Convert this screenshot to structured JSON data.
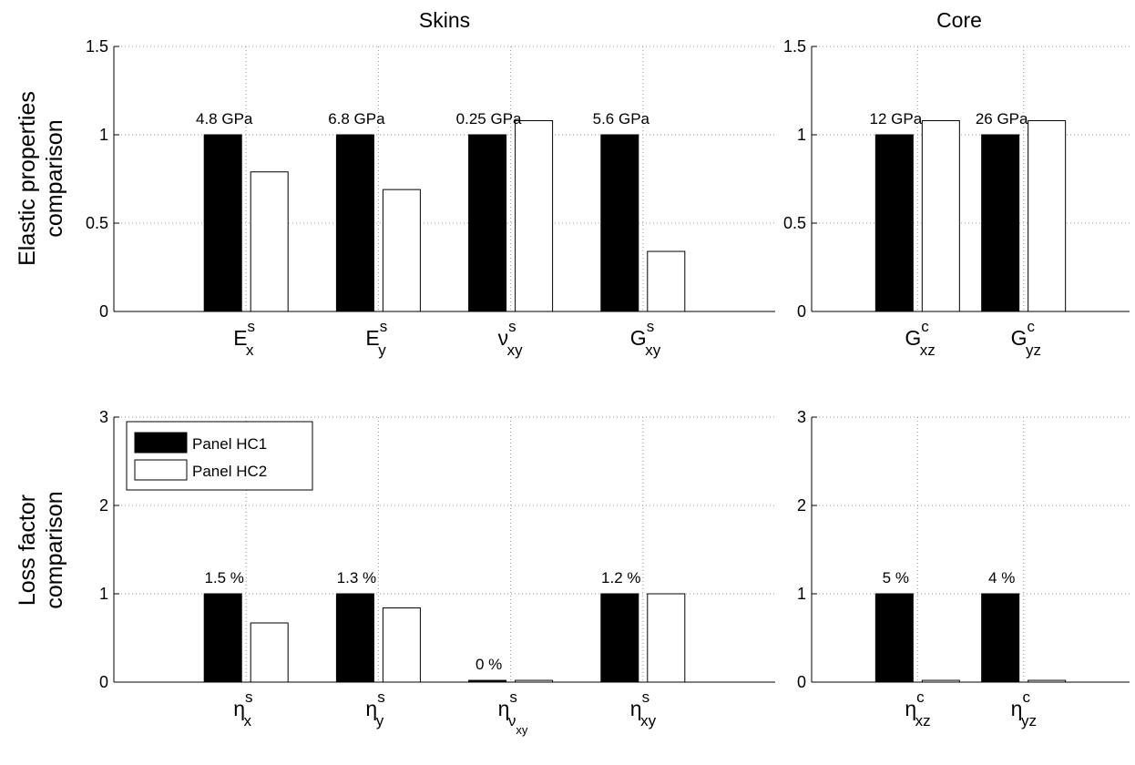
{
  "figure": {
    "col_titles": [
      "Skins",
      "Core"
    ],
    "row_labels": [
      [
        "Elastic properties",
        "comparison"
      ],
      [
        "Loss factor",
        "comparison"
      ]
    ]
  },
  "legend": {
    "placement": "upper-left of bottom-left panel",
    "entries": [
      {
        "name": "Panel HC1",
        "color": "#000000"
      },
      {
        "name": "Panel HC2",
        "color": "#ffffff"
      }
    ]
  },
  "colors": {
    "hc1": "#000000",
    "hc2": "#ffffff",
    "grid": "#9a9a9a",
    "axis": "#000000"
  },
  "chart_data": [
    {
      "type": "bar",
      "panel": "top-left",
      "ylim": [
        0,
        1.5
      ],
      "yticks": [
        "0",
        "0.5",
        "1",
        "1.5"
      ],
      "ytick_values": [
        0,
        0.5,
        1,
        1.5
      ],
      "grid": true,
      "categories": [
        {
          "main": "E",
          "sup": "s",
          "sub": "x",
          "subsub": ""
        },
        {
          "main": "E",
          "sup": "s",
          "sub": "y",
          "subsub": ""
        },
        {
          "main": "ν",
          "sup": "s",
          "sub": "xy",
          "subsub": ""
        },
        {
          "main": "G",
          "sup": "s",
          "sub": "xy",
          "subsub": ""
        }
      ],
      "series": [
        {
          "name": "Panel HC1",
          "values": [
            1,
            1,
            1,
            1
          ]
        },
        {
          "name": "Panel HC2",
          "values": [
            0.79,
            0.69,
            1.08,
            0.34
          ]
        }
      ],
      "data_labels": [
        "4.8 GPa",
        "6.8 GPa",
        "0.25 GPa",
        "5.6 GPa"
      ]
    },
    {
      "type": "bar",
      "panel": "top-right",
      "ylim": [
        0,
        1.5
      ],
      "yticks": [
        "0",
        "0.5",
        "1",
        "1.5"
      ],
      "ytick_values": [
        0,
        0.5,
        1,
        1.5
      ],
      "grid": true,
      "categories": [
        {
          "main": "G",
          "sup": "c",
          "sub": "xz",
          "subsub": ""
        },
        {
          "main": "G",
          "sup": "c",
          "sub": "yz",
          "subsub": ""
        }
      ],
      "series": [
        {
          "name": "Panel HC1",
          "values": [
            1,
            1
          ]
        },
        {
          "name": "Panel HC2",
          "values": [
            1.08,
            1.08
          ]
        }
      ],
      "data_labels": [
        "12 GPa",
        "26 GPa"
      ]
    },
    {
      "type": "bar",
      "panel": "bottom-left",
      "ylim": [
        0,
        3
      ],
      "yticks": [
        "0",
        "1",
        "2",
        "3"
      ],
      "ytick_values": [
        0,
        1,
        2,
        3
      ],
      "grid": true,
      "categories": [
        {
          "main": "η",
          "sup": "s",
          "sub": "x",
          "subsub": ""
        },
        {
          "main": "η",
          "sup": "s",
          "sub": "y",
          "subsub": ""
        },
        {
          "main": "η",
          "sup": "s",
          "sub": "ν",
          "subsub": "xy"
        },
        {
          "main": "η",
          "sup": "s",
          "sub": "xy",
          "subsub": ""
        }
      ],
      "series": [
        {
          "name": "Panel HC1",
          "values": [
            1,
            1,
            0.02,
            1
          ]
        },
        {
          "name": "Panel HC2",
          "values": [
            0.67,
            0.84,
            0.02,
            1
          ]
        }
      ],
      "data_labels": [
        "1.5 %",
        "1.3 %",
        "0 %",
        "1.2 %"
      ]
    },
    {
      "type": "bar",
      "panel": "bottom-right",
      "ylim": [
        0,
        3
      ],
      "yticks": [
        "0",
        "1",
        "2",
        "3"
      ],
      "ytick_values": [
        0,
        1,
        2,
        3
      ],
      "grid": true,
      "categories": [
        {
          "main": "η",
          "sup": "c",
          "sub": "xz",
          "subsub": ""
        },
        {
          "main": "η",
          "sup": "c",
          "sub": "yz",
          "subsub": ""
        }
      ],
      "series": [
        {
          "name": "Panel HC1",
          "values": [
            1,
            1
          ]
        },
        {
          "name": "Panel HC2",
          "values": [
            0.02,
            0.02
          ]
        }
      ],
      "data_labels": [
        "5 %",
        "4 %"
      ]
    }
  ]
}
